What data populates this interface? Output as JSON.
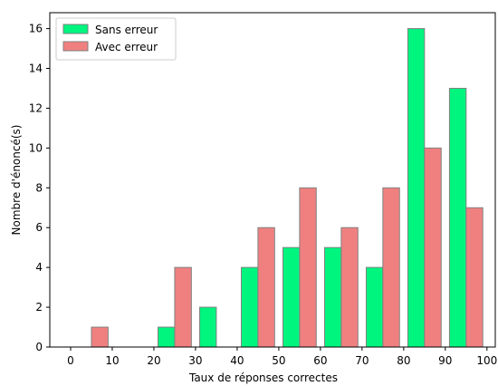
{
  "chart_data": {
    "type": "bar",
    "title": "",
    "xlabel": "Taux de réponses correctes",
    "ylabel": "Nombre d'énoncé(s)",
    "xlim": [
      -5,
      102
    ],
    "ylim": [
      0,
      16.8
    ],
    "x_ticks": [
      0,
      10,
      20,
      30,
      40,
      50,
      60,
      70,
      80,
      90,
      100
    ],
    "y_ticks": [
      0,
      2,
      4,
      6,
      8,
      10,
      12,
      14,
      16
    ],
    "bin_edges": [
      0,
      10,
      20,
      30,
      40,
      50,
      60,
      70,
      80,
      90,
      100
    ],
    "grid": false,
    "legend": {
      "placement": "top-left"
    },
    "series": [
      {
        "name": "Sans erreur",
        "color": "#00f57f",
        "values": [
          0,
          0,
          1,
          2,
          4,
          5,
          5,
          4,
          16,
          13
        ]
      },
      {
        "name": "Avec erreur",
        "color": "#f08080",
        "values": [
          1,
          0,
          4,
          0,
          6,
          8,
          6,
          8,
          10,
          7
        ]
      }
    ]
  }
}
